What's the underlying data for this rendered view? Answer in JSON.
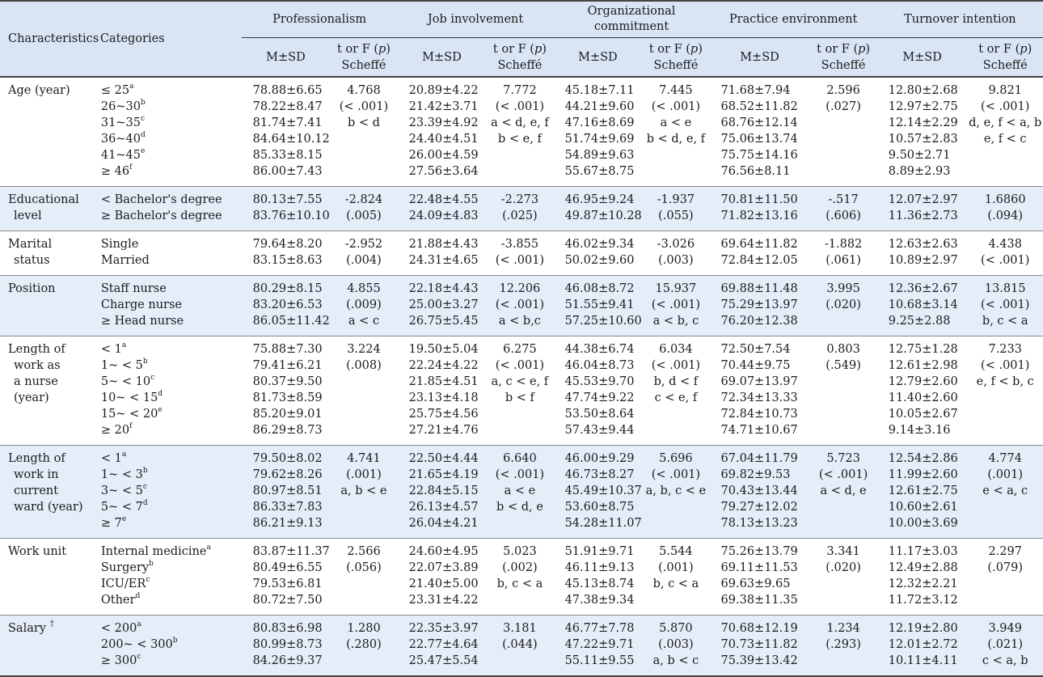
{
  "header": {
    "characteristics": "Characteristics",
    "categories": "Categories",
    "groups": [
      "Professionalism",
      "Job involvement",
      "Organizational commitment",
      "Practice environment",
      "Turnover intention"
    ],
    "mean_sd": "M±SD",
    "stat_line1": "t or F (",
    "stat_p": "p",
    "stat_close": ")",
    "stat_line2": "Scheffé"
  },
  "rows": [
    {
      "char": [
        "Age (year)"
      ],
      "shade": false,
      "cats": [
        [
          "≤ 25",
          "a"
        ],
        [
          "26~30",
          "b"
        ],
        [
          "31~35",
          "c"
        ],
        [
          "36~40",
          "d"
        ],
        [
          "41~45",
          "e"
        ],
        [
          "≥ 46",
          "f"
        ]
      ],
      "prof_m": [
        "78.88±6.65",
        "78.22±8.47",
        "81.74±7.41",
        "84.64±10.12",
        "85.33±8.15",
        "86.00±7.43"
      ],
      "prof_t": [
        "4.768",
        "(< .001)",
        "b < d"
      ],
      "job_m": [
        "20.89±4.22",
        "21.42±3.71",
        "23.39±4.92",
        "24.40±4.51",
        "26.00±4.59",
        "27.56±3.64"
      ],
      "job_t": [
        "7.772",
        "(< .001)",
        "a < d, e, f",
        "b < e, f"
      ],
      "org_m": [
        "45.18±7.11",
        "44.21±9.60",
        "47.16±8.69",
        "51.74±9.69",
        "54.89±9.63",
        "55.67±8.75"
      ],
      "org_t": [
        "7.445",
        "(< .001)",
        "a < e",
        "b < d, e, f"
      ],
      "prac_m": [
        "71.68±7.94",
        "68.52±11.82",
        "68.76±12.14",
        "75.06±13.74",
        "75.75±14.16",
        "76.56±8.11"
      ],
      "prac_t": [
        "2.596",
        "(.027)"
      ],
      "turn_m": [
        "12.80±2.68",
        "12.97±2.75",
        "12.14±2.29",
        "10.57±2.83",
        "9.50±2.71",
        "8.89±2.93"
      ],
      "turn_t": [
        "9.821",
        "(< .001)",
        "d, e, f < a, b",
        "e, f < c"
      ]
    },
    {
      "char": [
        "Educational",
        "level"
      ],
      "shade": true,
      "cats": [
        [
          "< Bachelor's degree",
          ""
        ],
        [
          "≥ Bachelor's degree",
          ""
        ]
      ],
      "prof_m": [
        "80.13±7.55",
        "83.76±10.10"
      ],
      "prof_t": [
        "-2.824",
        "(.005)"
      ],
      "job_m": [
        "22.48±4.55",
        "24.09±4.83"
      ],
      "job_t": [
        "-2.273",
        "(.025)"
      ],
      "org_m": [
        "46.95±9.24",
        "49.87±10.28"
      ],
      "org_t": [
        "-1.937",
        "(.055)"
      ],
      "prac_m": [
        "70.81±11.50",
        "71.82±13.16"
      ],
      "prac_t": [
        "-.517",
        "(.606)"
      ],
      "turn_m": [
        "12.07±2.97",
        "11.36±2.73"
      ],
      "turn_t": [
        "1.6860",
        "(.094)"
      ]
    },
    {
      "char": [
        "Marital",
        "status"
      ],
      "shade": false,
      "cats": [
        [
          "Single",
          ""
        ],
        [
          "Married",
          ""
        ]
      ],
      "prof_m": [
        "79.64±8.20",
        "83.15±8.63"
      ],
      "prof_t": [
        "-2.952",
        "(.004)"
      ],
      "job_m": [
        "21.88±4.43",
        "24.31±4.65"
      ],
      "job_t": [
        "-3.855",
        "(< .001)"
      ],
      "org_m": [
        "46.02±9.34",
        "50.02±9.60"
      ],
      "org_t": [
        "-3.026",
        "(.003)"
      ],
      "prac_m": [
        "69.64±11.82",
        "72.84±12.05"
      ],
      "prac_t": [
        "-1.882",
        "(.061)"
      ],
      "turn_m": [
        "12.63±2.63",
        "10.89±2.97"
      ],
      "turn_t": [
        "4.438",
        "(< .001)"
      ]
    },
    {
      "char": [
        "Position"
      ],
      "shade": true,
      "cats": [
        [
          "Staff nurse",
          ""
        ],
        [
          "Charge nurse",
          ""
        ],
        [
          "≥ Head nurse",
          ""
        ]
      ],
      "prof_m": [
        "80.29±8.15",
        "83.20±6.53",
        "86.05±11.42"
      ],
      "prof_t": [
        "4.855",
        "(.009)",
        "a < c"
      ],
      "job_m": [
        "22.18±4.43",
        "25.00±3.27",
        "26.75±5.45"
      ],
      "job_t": [
        "12.206",
        "(< .001)",
        "a < b,c"
      ],
      "org_m": [
        "46.08±8.72",
        "51.55±9.41",
        "57.25±10.60"
      ],
      "org_t": [
        "15.937",
        "(< .001)",
        "a < b, c"
      ],
      "prac_m": [
        "69.88±11.48",
        "75.29±13.97",
        "76.20±12.38"
      ],
      "prac_t": [
        "3.995",
        "(.020)"
      ],
      "turn_m": [
        "12.36±2.67",
        "10.68±3.14",
        "9.25±2.88"
      ],
      "turn_t": [
        "13.815",
        "(< .001)",
        "b, c < a"
      ]
    },
    {
      "char": [
        "Length of",
        "work as",
        "a nurse",
        "(year)"
      ],
      "shade": false,
      "cats": [
        [
          "< 1",
          "a"
        ],
        [
          "1~ < 5",
          "b"
        ],
        [
          "5~ < 10",
          "c"
        ],
        [
          "10~ < 15",
          "d"
        ],
        [
          "15~ < 20",
          "e"
        ],
        [
          "≥ 20",
          "f"
        ]
      ],
      "prof_m": [
        "75.88±7.30",
        "79.41±6.21",
        "80.37±9.50",
        "81.73±8.59",
        "85.20±9.01",
        "86.29±8.73"
      ],
      "prof_t": [
        "3.224",
        "(.008)"
      ],
      "job_m": [
        "19.50±5.04",
        "22.24±4.22",
        "21.85±4.51",
        "23.13±4.18",
        "25.75±4.56",
        "27.21±4.76"
      ],
      "job_t": [
        "6.275",
        "(< .001)",
        "a, c < e, f",
        "b < f"
      ],
      "org_m": [
        "44.38±6.74",
        "46.04±8.73",
        "45.53±9.70",
        "47.74±9.22",
        "53.50±8.64",
        "57.43±9.44"
      ],
      "org_t": [
        "6.034",
        "(< .001)",
        "b, d < f",
        "c < e, f"
      ],
      "prac_m": [
        "72.50±7.54",
        "70.44±9.75",
        "69.07±13.97",
        "72.34±13.33",
        "72.84±10.73",
        "74.71±10.67"
      ],
      "prac_t": [
        "0.803",
        "(.549)"
      ],
      "turn_m": [
        "12.75±1.28",
        "12.61±2.98",
        "12.79±2.60",
        "11.40±2.60",
        "10.05±2.67",
        "9.14±3.16"
      ],
      "turn_t": [
        "7.233",
        "(< .001)",
        "e, f < b, c"
      ]
    },
    {
      "char": [
        "Length of",
        "work in",
        "current",
        "ward (year)"
      ],
      "shade": true,
      "cats": [
        [
          "< 1",
          "a"
        ],
        [
          "1~ < 3",
          "b"
        ],
        [
          "3~ < 5",
          "c"
        ],
        [
          "5~ < 7",
          "d"
        ],
        [
          "≥ 7",
          "e"
        ]
      ],
      "prof_m": [
        "79.50±8.02",
        "79.62±8.26",
        "80.97±8.51",
        "86.33±7.83",
        "86.21±9.13"
      ],
      "prof_t": [
        "4.741",
        "(.001)",
        "a, b < e"
      ],
      "job_m": [
        "22.50±4.44",
        "21.65±4.19",
        "22.84±5.15",
        "26.13±4.57",
        "26.04±4.21"
      ],
      "job_t": [
        "6.640",
        "(< .001)",
        "a < e",
        "b < d, e"
      ],
      "org_m": [
        "46.00±9.29",
        "46.73±8.27",
        "45.49±10.37",
        "53.60±8.75",
        "54.28±11.07"
      ],
      "org_t": [
        "5.696",
        "(< .001)",
        "a, b, c < e"
      ],
      "prac_m": [
        "67.04±11.79",
        "69.82±9.53",
        "70.43±13.44",
        "79.27±12.02",
        "78.13±13.23"
      ],
      "prac_t": [
        "5.723",
        "(< .001)",
        "a < d, e"
      ],
      "turn_m": [
        "12.54±2.86",
        "11.99±2.60",
        "12.61±2.75",
        "10.60±2.61",
        "10.00±3.69"
      ],
      "turn_t": [
        "4.774",
        "(.001)",
        "e < a, c"
      ]
    },
    {
      "char": [
        "Work unit"
      ],
      "shade": false,
      "cats": [
        [
          "Internal medicine",
          "a"
        ],
        [
          "Surgery",
          "b"
        ],
        [
          "ICU/ER",
          "c"
        ],
        [
          "Other",
          "d"
        ]
      ],
      "prof_m": [
        "83.87±11.37",
        "80.49±6.55",
        "79.53±6.81",
        "80.72±7.50"
      ],
      "prof_t": [
        "2.566",
        "(.056)"
      ],
      "job_m": [
        "24.60±4.95",
        "22.07±3.89",
        "21.40±5.00",
        "23.31±4.22"
      ],
      "job_t": [
        "5.023",
        "(.002)",
        "b, c < a"
      ],
      "org_m": [
        "51.91±9.71",
        "46.11±9.13",
        "45.13±8.74",
        "47.38±9.34"
      ],
      "org_t": [
        "5.544",
        "(.001)",
        "b, c < a"
      ],
      "prac_m": [
        "75.26±13.79",
        "69.11±11.53",
        "69.63±9.65",
        "69.38±11.35"
      ],
      "prac_t": [
        "3.341",
        "(.020)"
      ],
      "turn_m": [
        "11.17±3.03",
        "12.49±2.88",
        "12.32±2.21",
        "11.72±3.12"
      ],
      "turn_t": [
        "2.297",
        "(.079)"
      ]
    },
    {
      "char": [
        "Salary"
      ],
      "char_mark": "†",
      "shade": true,
      "cats": [
        [
          "< 200",
          "a"
        ],
        [
          "200~ < 300",
          "b"
        ],
        [
          "≥ 300",
          "c"
        ]
      ],
      "prof_m": [
        "80.83±6.98",
        "80.99±8.73",
        "84.26±9.37"
      ],
      "prof_t": [
        "1.280",
        "(.280)"
      ],
      "job_m": [
        "22.35±3.97",
        "22.77±4.64",
        "25.47±5.54"
      ],
      "job_t": [
        "3.181",
        "(.044)"
      ],
      "org_m": [
        "46.77±7.78",
        "47.22±9.71",
        "55.11±9.55"
      ],
      "org_t": [
        "5.870",
        "(.003)",
        "a, b < c"
      ],
      "prac_m": [
        "70.68±12.19",
        "70.73±11.82",
        "75.39±13.42"
      ],
      "prac_t": [
        "1.234",
        "(.293)"
      ],
      "turn_m": [
        "12.19±2.80",
        "12.01±2.72",
        "10.11±4.11"
      ],
      "turn_t": [
        "3.949",
        "(.021)",
        "c < a, b"
      ]
    }
  ]
}
